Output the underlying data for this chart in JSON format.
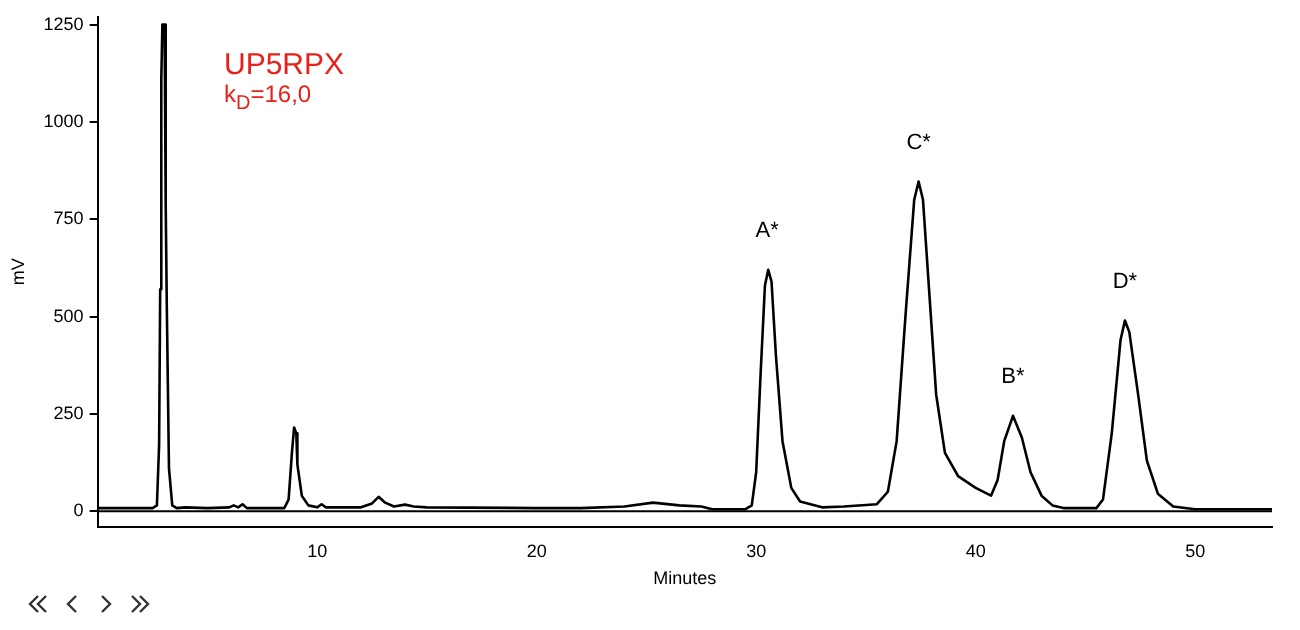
{
  "chart_data": {
    "type": "line",
    "xlabel": "Minutes",
    "ylabel": "mV",
    "annotations": [
      "UP5RPX",
      "k$_{D}$=16,0",
      {
        "text": "A*",
        "x": 30.5,
        "y": 620
      },
      {
        "text": "C*",
        "x": 37.4,
        "y": 847
      },
      {
        "text": "B*",
        "x": 41.7,
        "y": 245
      },
      {
        "text": "D*",
        "x": 46.8,
        "y": 490
      }
    ],
    "x": [
      0,
      2.5,
      2.7,
      2.8,
      2.85,
      2.9,
      2.95,
      3.05,
      3.1,
      3.15,
      3.25,
      3.4,
      3.6,
      4,
      5,
      6,
      6.2,
      6.4,
      6.6,
      6.8,
      8.5,
      8.7,
      8.85,
      8.95,
      9.05,
      9.1,
      9.3,
      9.6,
      10,
      10.2,
      10.4,
      12,
      12.5,
      12.8,
      13.1,
      13.5,
      14,
      14.4,
      15,
      20,
      22,
      24,
      25.3,
      26.5,
      27.5,
      28,
      29.5,
      29.8,
      30,
      30.2,
      30.4,
      30.55,
      30.7,
      30.9,
      31.2,
      31.6,
      32,
      33,
      34,
      35.5,
      36,
      36.4,
      36.8,
      37.2,
      37.4,
      37.6,
      37.9,
      38.2,
      38.6,
      39.2,
      40,
      40.7,
      41,
      41.3,
      41.7,
      42.1,
      42.5,
      43,
      43.5,
      44,
      45.5,
      45.8,
      46.2,
      46.6,
      46.8,
      47,
      47.4,
      47.8,
      48.3,
      49,
      50,
      53.5
    ],
    "series": [
      {
        "color": "#000000",
        "values": [
          8,
          8,
          15,
          170,
          570,
          1110,
          1250,
          1250,
          790,
          530,
          110,
          15,
          8,
          10,
          8,
          10,
          15,
          10,
          18,
          8,
          8,
          30,
          150,
          215,
          200,
          120,
          40,
          15,
          10,
          18,
          10,
          10,
          20,
          37,
          22,
          12,
          17,
          12,
          10,
          8,
          8,
          12,
          22,
          15,
          12,
          5,
          5,
          15,
          100,
          350,
          580,
          620,
          590,
          400,
          180,
          60,
          25,
          10,
          12,
          18,
          50,
          180,
          500,
          800,
          847,
          800,
          550,
          300,
          150,
          90,
          60,
          40,
          80,
          180,
          245,
          190,
          100,
          40,
          15,
          8,
          8,
          30,
          200,
          440,
          490,
          460,
          300,
          130,
          45,
          12,
          5,
          5
        ]
      }
    ],
    "xlim": [
      0,
      53.5
    ],
    "xticks": [
      10,
      20,
      30,
      40,
      50
    ],
    "ylim": [
      -40,
      1270
    ],
    "yticks": [
      0,
      250,
      500,
      750,
      1000,
      1250
    ],
    "ref_lines": [
      {
        "axis": "y",
        "value": 0,
        "color": "#000000"
      }
    ],
    "grid": false,
    "legend": false,
    "marker": "none",
    "line_style": "solid"
  }
}
